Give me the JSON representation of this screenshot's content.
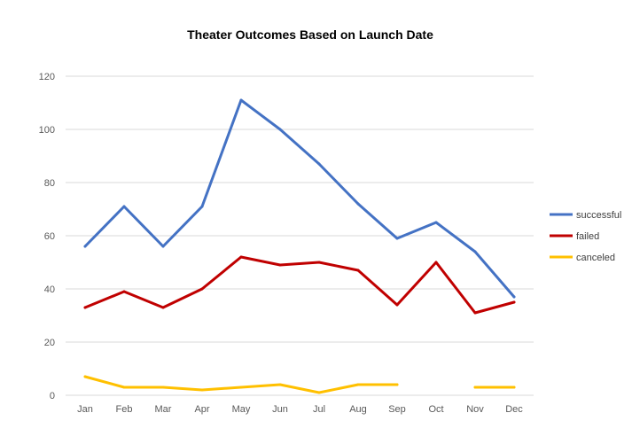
{
  "chart_data": {
    "type": "line",
    "title": "Theater Outcomes Based on Launch Date",
    "xlabel": "",
    "ylabel": "",
    "categories": [
      "Jan",
      "Feb",
      "Mar",
      "Apr",
      "May",
      "Jun",
      "Jul",
      "Aug",
      "Sep",
      "Oct",
      "Nov",
      "Dec"
    ],
    "ylim": [
      0,
      120
    ],
    "yticks": [
      0,
      20,
      40,
      60,
      80,
      100,
      120
    ],
    "grid": true,
    "legend_position": "right",
    "series": [
      {
        "name": "successful",
        "color": "#4472c4",
        "values": [
          56,
          71,
          56,
          71,
          111,
          100,
          87,
          72,
          59,
          65,
          54,
          37
        ]
      },
      {
        "name": "failed",
        "color": "#c00000",
        "values": [
          33,
          39,
          33,
          40,
          52,
          49,
          50,
          47,
          34,
          50,
          31,
          35
        ]
      },
      {
        "name": "canceled",
        "color": "#ffc000",
        "values": [
          7,
          3,
          3,
          2,
          3,
          4,
          1,
          4,
          4,
          null,
          3,
          3
        ]
      }
    ]
  }
}
